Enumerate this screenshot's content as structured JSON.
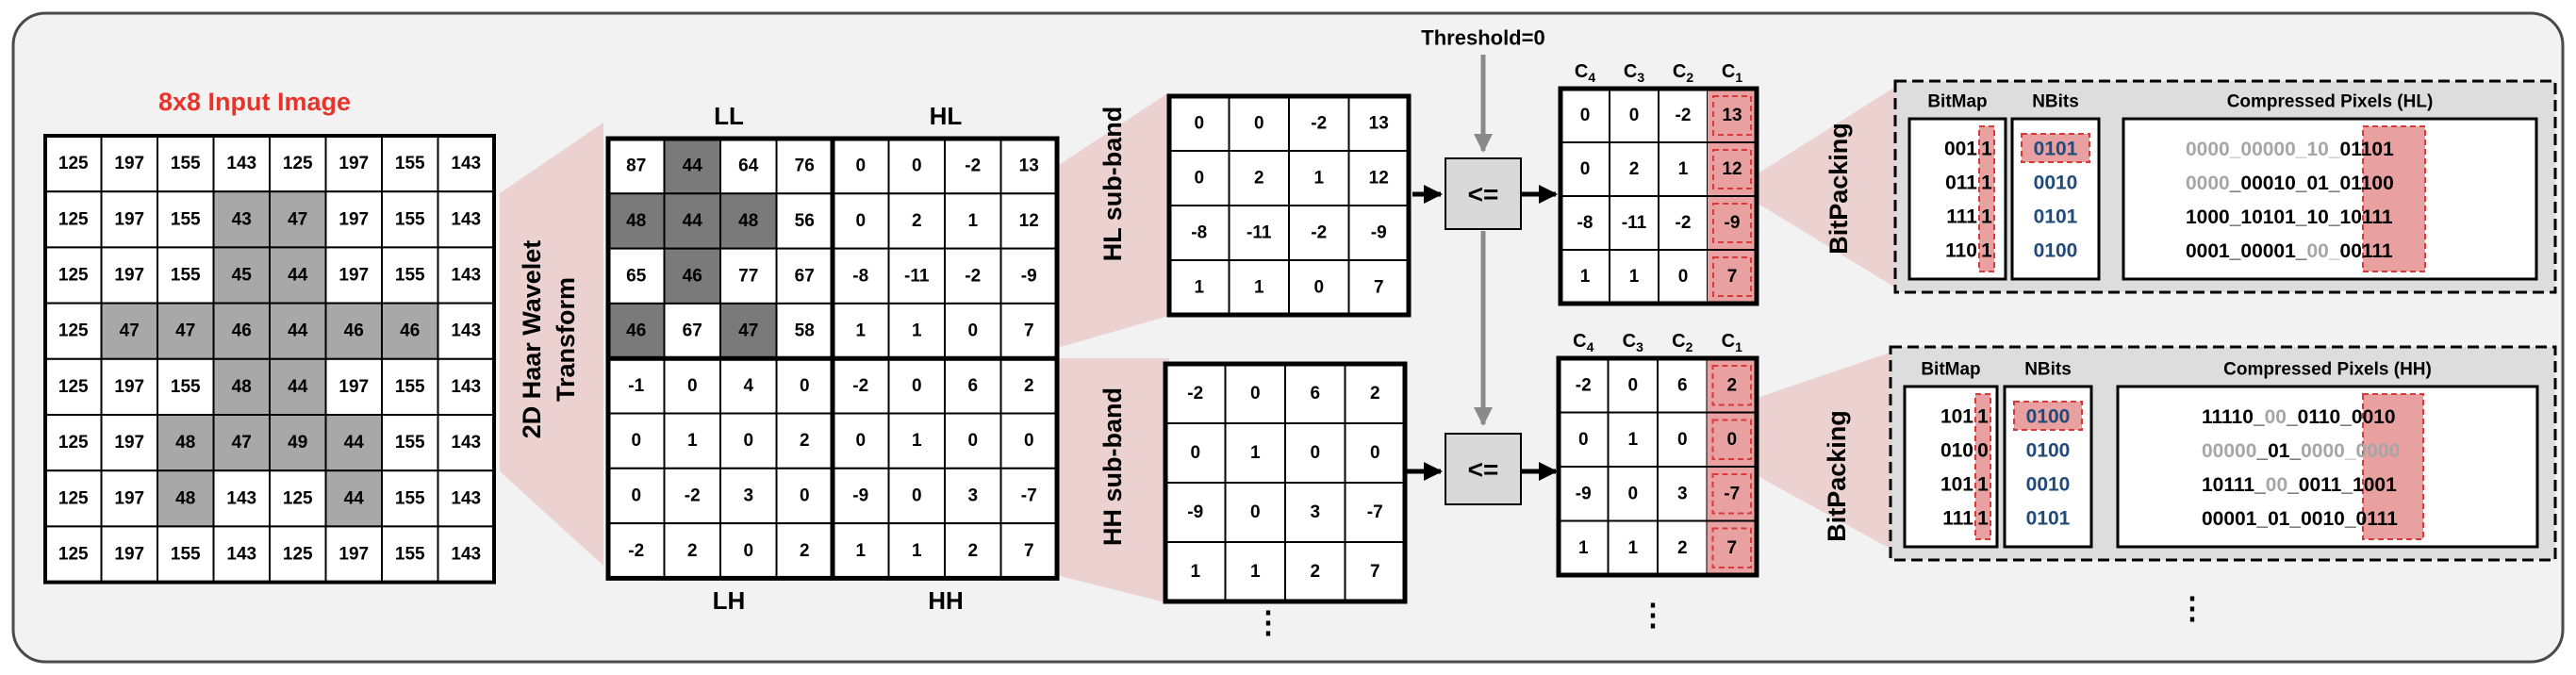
{
  "input": {
    "title": "8x8 Input Image",
    "pixels": [
      [
        "125",
        "197",
        "155",
        "143",
        "125",
        "197",
        "155",
        "143"
      ],
      [
        "125",
        "197",
        "155",
        "43",
        "47",
        "197",
        "155",
        "143"
      ],
      [
        "125",
        "197",
        "155",
        "45",
        "44",
        "197",
        "155",
        "143"
      ],
      [
        "125",
        "47",
        "47",
        "46",
        "44",
        "46",
        "46",
        "143"
      ],
      [
        "125",
        "197",
        "155",
        "48",
        "44",
        "197",
        "155",
        "143"
      ],
      [
        "125",
        "197",
        "48",
        "47",
        "49",
        "44",
        "155",
        "143"
      ],
      [
        "125",
        "197",
        "48",
        "143",
        "125",
        "44",
        "155",
        "143"
      ],
      [
        "125",
        "197",
        "155",
        "143",
        "125",
        "197",
        "155",
        "143"
      ]
    ],
    "shaded": [
      [
        1,
        3
      ],
      [
        1,
        4
      ],
      [
        2,
        3
      ],
      [
        2,
        4
      ],
      [
        3,
        1
      ],
      [
        3,
        2
      ],
      [
        3,
        3
      ],
      [
        3,
        4
      ],
      [
        3,
        5
      ],
      [
        3,
        6
      ],
      [
        4,
        3
      ],
      [
        4,
        4
      ],
      [
        5,
        2
      ],
      [
        5,
        3
      ],
      [
        5,
        4
      ],
      [
        5,
        5
      ],
      [
        6,
        2
      ],
      [
        6,
        5
      ]
    ]
  },
  "transform": {
    "label_line1": "2D Haar Wavelet",
    "label_line2": "Transform",
    "coeffs": [
      [
        "87",
        "44",
        "64",
        "76",
        "0",
        "0",
        "-2",
        "13"
      ],
      [
        "48",
        "44",
        "48",
        "56",
        "0",
        "2",
        "1",
        "12"
      ],
      [
        "65",
        "46",
        "77",
        "67",
        "-8",
        "-11",
        "-2",
        "-9"
      ],
      [
        "46",
        "67",
        "47",
        "58",
        "1",
        "1",
        "0",
        "7"
      ],
      [
        "-1",
        "0",
        "4",
        "0",
        "-2",
        "0",
        "6",
        "2"
      ],
      [
        "0",
        "1",
        "0",
        "2",
        "0",
        "1",
        "0",
        "0"
      ],
      [
        "0",
        "-2",
        "3",
        "0",
        "-9",
        "0",
        "3",
        "-7"
      ],
      [
        "-2",
        "2",
        "0",
        "2",
        "1",
        "1",
        "2",
        "7"
      ]
    ],
    "shaded": [
      [
        0,
        1
      ],
      [
        1,
        0
      ],
      [
        1,
        1
      ],
      [
        1,
        2
      ],
      [
        2,
        1
      ],
      [
        3,
        0
      ],
      [
        3,
        2
      ]
    ],
    "quadrant_labels": {
      "ll": "LL",
      "hl": "HL",
      "lh": "LH",
      "hh": "HH"
    }
  },
  "subbands": {
    "hl_label": "HL sub-band",
    "hh_label": "HH sub-band",
    "hl": [
      [
        "0",
        "0",
        "-2",
        "13"
      ],
      [
        "0",
        "2",
        "1",
        "12"
      ],
      [
        "-8",
        "-11",
        "-2",
        "-9"
      ],
      [
        "1",
        "1",
        "0",
        "7"
      ]
    ],
    "hh": [
      [
        "-2",
        "0",
        "6",
        "2"
      ],
      [
        "0",
        "1",
        "0",
        "0"
      ],
      [
        "-9",
        "0",
        "3",
        "-7"
      ],
      [
        "1",
        "1",
        "2",
        "7"
      ]
    ]
  },
  "threshold": {
    "label": "Threshold=0",
    "op": "<="
  },
  "cols": {
    "c4": {
      "main": "C",
      "sub": "4"
    },
    "c3": {
      "main": "C",
      "sub": "3"
    },
    "c2": {
      "main": "C",
      "sub": "2"
    },
    "c1": {
      "main": "C",
      "sub": "1"
    }
  },
  "bitpack": {
    "label": "BitPacking",
    "bitmap_header": "BitMap",
    "nbits_header": "NBits",
    "hl": {
      "title": "Compressed Pixels (HL)",
      "bitmap": [
        [
          "001",
          "1"
        ],
        [
          "011",
          "1"
        ],
        [
          "111",
          "1"
        ],
        [
          "110",
          "1"
        ]
      ],
      "nbits": [
        "0101",
        "0010",
        "0101",
        "0100"
      ],
      "pixels": [
        [
          {
            "t": "0000_00000_10_",
            "g": true
          },
          {
            "t": "01101",
            "g": false
          }
        ],
        [
          {
            "t": "0000",
            "g": true
          },
          {
            "t": "_00010_01_",
            "g": false
          },
          {
            "t": "01100",
            "g": false
          }
        ],
        [
          {
            "t": "1000_10101_10_",
            "g": false
          },
          {
            "t": "10111",
            "g": false
          }
        ],
        [
          {
            "t": "0001_00001_",
            "g": false
          },
          {
            "t": "00_",
            "g": true
          },
          {
            "t": "00111",
            "g": false
          }
        ]
      ]
    },
    "hh": {
      "title": "Compressed Pixels (HH)",
      "bitmap": [
        [
          "101",
          "1"
        ],
        [
          "010",
          "0"
        ],
        [
          "101",
          "1"
        ],
        [
          "111",
          "1"
        ]
      ],
      "nbits": [
        "0100",
        "0100",
        "0010",
        "0101"
      ],
      "pixels": [
        [
          {
            "t": "11110_",
            "g": false
          },
          {
            "t": "00",
            "g": true
          },
          {
            "t": "_0110_",
            "g": false
          },
          {
            "t": "0010",
            "g": false
          }
        ],
        [
          {
            "t": "00000",
            "g": true
          },
          {
            "t": "_01_",
            "g": false
          },
          {
            "t": "0000_",
            "g": true
          },
          {
            "t": "0000",
            "g": true
          }
        ],
        [
          {
            "t": "10111_",
            "g": false
          },
          {
            "t": "00",
            "g": true
          },
          {
            "t": "_0011_",
            "g": false
          },
          {
            "t": "1001",
            "g": false
          }
        ],
        [
          {
            "t": "00001_01_0010_",
            "g": false
          },
          {
            "t": "0111",
            "g": false
          }
        ]
      ]
    }
  },
  "ellipsis": "⋮",
  "colors": {
    "red_title": "#e8332a",
    "pink_band": "#ecd1d1",
    "red_fill": "#e8a0a0",
    "red_dash": "#d83a3a",
    "blue": "#1f4a7a",
    "gray_bits": "#a6a6a6",
    "shade_input": "#a8a8a8",
    "shade_coeff": "#7a7a7a",
    "box_fill": "#d9d9d9",
    "panel": "#dddddd"
  }
}
